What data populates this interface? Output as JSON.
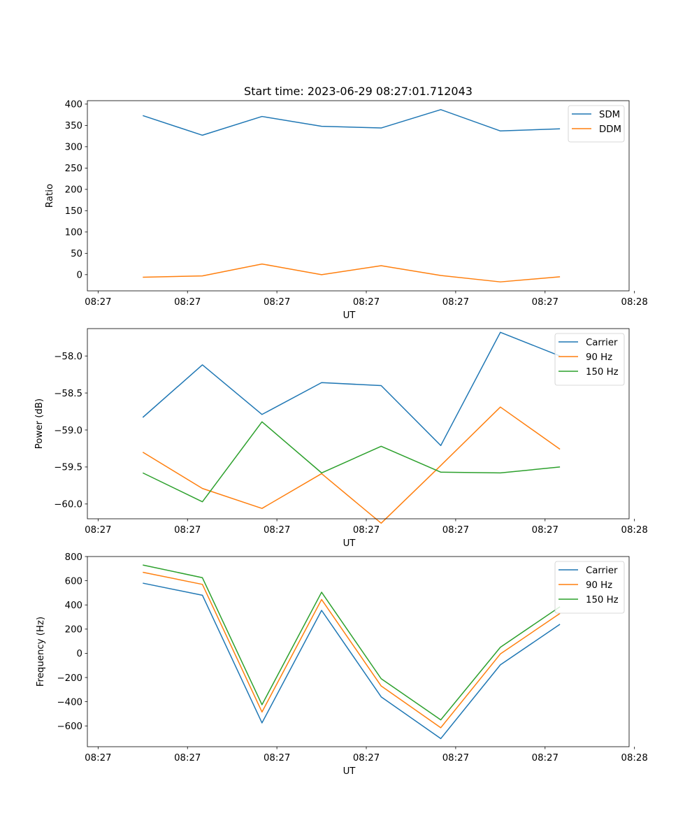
{
  "title": "Start time: 2023-06-29 08:27:01.712043",
  "xtick_labels": [
    "08:27",
    "08:27",
    "08:27",
    "08:27",
    "08:27",
    "08:27",
    "08:28"
  ],
  "chart_data": [
    {
      "type": "line",
      "xlabel": "UT",
      "ylabel": "Ratio",
      "ylim": [
        -38,
        408
      ],
      "yticks": [
        0,
        50,
        100,
        150,
        200,
        250,
        300,
        350,
        400
      ],
      "ytick_labels": [
        "0",
        "50",
        "100",
        "150",
        "200",
        "250",
        "300",
        "350",
        "400"
      ],
      "x": [
        1,
        2,
        3,
        4,
        5,
        6,
        7,
        8
      ],
      "xlim": [
        0.07,
        9.16
      ],
      "xticks": [
        0.25,
        1.75,
        3.25,
        4.75,
        6.25,
        7.75,
        9.25
      ],
      "legend": "top-right",
      "grid": false,
      "series": [
        {
          "name": "SDM",
          "color": "#1f77b4",
          "values": [
            373,
            327,
            371,
            348,
            344,
            387,
            337,
            342
          ]
        },
        {
          "name": "DDM",
          "color": "#ff7f0e",
          "values": [
            -6,
            -3,
            25,
            0,
            21,
            -2,
            -17,
            -5
          ]
        }
      ]
    },
    {
      "type": "line",
      "xlabel": "UT",
      "ylabel": "Power (dB)",
      "ylim": [
        -60.2,
        -57.63
      ],
      "yticks": [
        -60.0,
        -59.5,
        -59.0,
        -58.5,
        -58.0
      ],
      "ytick_labels": [
        "−60.0",
        "−59.5",
        "−59.0",
        "−58.5",
        "−58.0"
      ],
      "x": [
        1,
        2,
        3,
        4,
        5,
        6,
        7,
        8
      ],
      "xlim": [
        0.07,
        9.16
      ],
      "xticks": [
        0.25,
        1.75,
        3.25,
        4.75,
        6.25,
        7.75,
        9.25
      ],
      "legend": "top-right",
      "grid": false,
      "series": [
        {
          "name": "Carrier",
          "color": "#1f77b4",
          "values": [
            -58.83,
            -58.12,
            -58.79,
            -58.36,
            -58.4,
            -59.21,
            -57.68,
            -58.0
          ]
        },
        {
          "name": "90 Hz",
          "color": "#ff7f0e",
          "values": [
            -59.3,
            -59.79,
            -60.06,
            -59.59,
            -60.26,
            -59.48,
            -58.69,
            -59.26
          ]
        },
        {
          "name": "150 Hz",
          "color": "#2ca02c",
          "values": [
            -59.58,
            -59.97,
            -58.89,
            -59.58,
            -59.22,
            -59.57,
            -59.58,
            -59.5
          ]
        }
      ]
    },
    {
      "type": "line",
      "xlabel": "UT",
      "ylabel": "Frequency (Hz)",
      "ylim": [
        -772,
        800
      ],
      "yticks": [
        -600,
        -400,
        -200,
        0,
        200,
        400,
        600,
        800
      ],
      "ytick_labels": [
        "−600",
        "−400",
        "−200",
        "0",
        "200",
        "400",
        "600",
        "800"
      ],
      "x": [
        1,
        2,
        3,
        4,
        5,
        6,
        7,
        8
      ],
      "xlim": [
        0.07,
        9.16
      ],
      "xticks": [
        0.25,
        1.75,
        3.25,
        4.75,
        6.25,
        7.75,
        9.25
      ],
      "legend": "top-right",
      "grid": false,
      "series": [
        {
          "name": "Carrier",
          "color": "#1f77b4",
          "values": [
            580,
            480,
            -575,
            355,
            -360,
            -705,
            -95,
            240
          ]
        },
        {
          "name": "90 Hz",
          "color": "#ff7f0e",
          "values": [
            670,
            570,
            -485,
            445,
            -270,
            -615,
            -5,
            330
          ]
        },
        {
          "name": "150 Hz",
          "color": "#2ca02c",
          "values": [
            730,
            625,
            -425,
            505,
            -210,
            -550,
            50,
            385
          ]
        }
      ]
    }
  ]
}
